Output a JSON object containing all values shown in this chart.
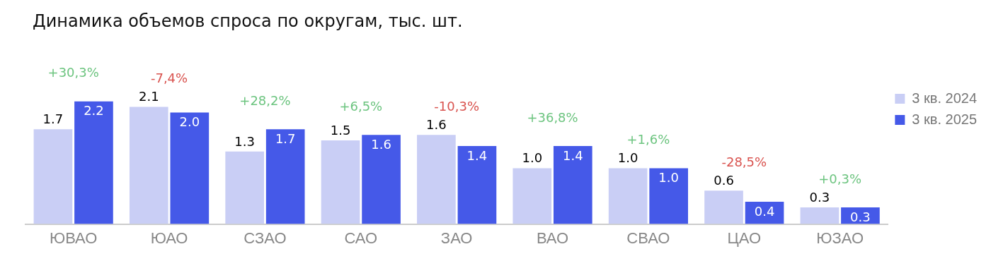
{
  "chart_data": {
    "type": "bar",
    "title": "Динамика объемов спроса по округам, тыс. шт.",
    "categories": [
      "ЮВАО",
      "ЮАО",
      "СЗАО",
      "САО",
      "ЗАО",
      "ВАО",
      "СВАО",
      "ЦАО",
      "ЮЗАО"
    ],
    "series": [
      {
        "name": "3 кв. 2024",
        "color": "#c9cef5",
        "values": [
          1.7,
          2.1,
          1.3,
          1.5,
          1.6,
          1.0,
          1.0,
          0.6,
          0.3
        ],
        "value_labels": [
          "1.7",
          "2.1",
          "1.3",
          "1.5",
          "1.6",
          "1.0",
          "1.0",
          "0.6",
          "0.3"
        ]
      },
      {
        "name": "3 кв. 2025",
        "color": "#4559e8",
        "values": [
          2.2,
          2.0,
          1.7,
          1.6,
          1.4,
          1.4,
          1.0,
          0.4,
          0.3
        ],
        "value_labels": [
          "2.2",
          "2.0",
          "1.7",
          "1.6",
          "1.4",
          "1.4",
          "1.0",
          "0.4",
          "0.3"
        ]
      }
    ],
    "annotations": [
      "+30,3%",
      "-7,4%",
      "+28,2%",
      "+6,5%",
      "-10,3%",
      "+36,8%",
      "+1,6%",
      "-28,5%",
      "+0,3%"
    ],
    "legend": "top right",
    "grid": false,
    "tick_labels": "x"
  }
}
